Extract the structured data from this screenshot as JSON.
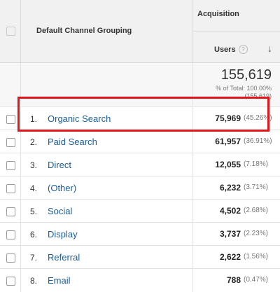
{
  "header": {
    "dimension_label": "Default Channel Grouping",
    "group_label": "Acquisition",
    "metric_label": "Users",
    "help_glyph": "?",
    "sort_glyph": "↓"
  },
  "totals": {
    "value": "155,619",
    "pct_label": "% of Total: 100.00%",
    "sub_label": "(155,619)"
  },
  "rows": [
    {
      "num": "1.",
      "channel": "Organic Search",
      "users": "75,969",
      "pct": "(45.26%)"
    },
    {
      "num": "2.",
      "channel": "Paid Search",
      "users": "61,957",
      "pct": "(36.91%)"
    },
    {
      "num": "3.",
      "channel": "Direct",
      "users": "12,055",
      "pct": "(7.18%)"
    },
    {
      "num": "4.",
      "channel": "(Other)",
      "users": "6,232",
      "pct": "(3.71%)"
    },
    {
      "num": "5.",
      "channel": "Social",
      "users": "4,502",
      "pct": "(2.68%)"
    },
    {
      "num": "6.",
      "channel": "Display",
      "users": "3,737",
      "pct": "(2.23%)"
    },
    {
      "num": "7.",
      "channel": "Referral",
      "users": "2,622",
      "pct": "(1.56%)"
    },
    {
      "num": "8.",
      "channel": "Email",
      "users": "788",
      "pct": "(0.47%)"
    }
  ],
  "colors": {
    "link": "#1a5d9b",
    "highlight": "#e0141a",
    "header_bg": "#f1f1f1"
  }
}
